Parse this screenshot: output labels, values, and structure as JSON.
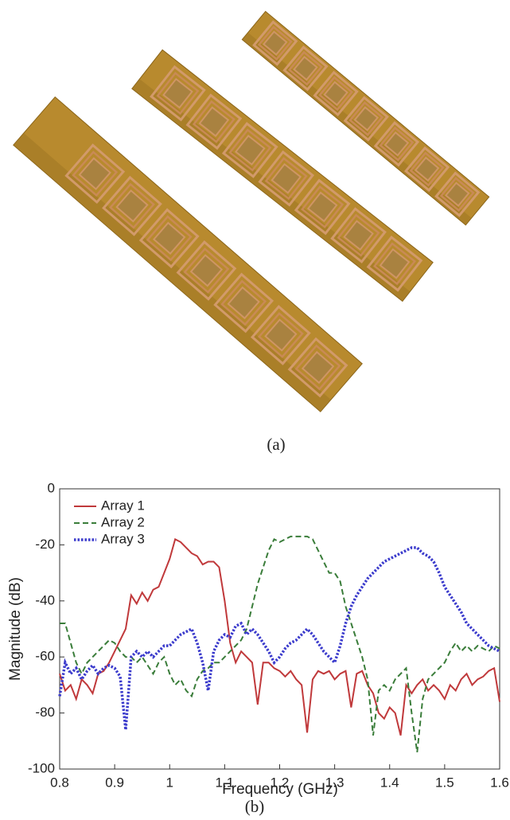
{
  "panel_labels": [
    "(a)",
    "(b)"
  ],
  "chart_data": {
    "type": "line",
    "xlabel": "Frequency (GHz)",
    "ylabel": "Magnitude (dB)",
    "xlim": [
      0.8,
      1.6
    ],
    "ylim": [
      -100,
      0
    ],
    "xticks": [
      0.8,
      0.9,
      1,
      1.1,
      1.2,
      1.3,
      1.4,
      1.5,
      1.6
    ],
    "yticks": [
      0,
      -20,
      -40,
      -60,
      -80,
      -100
    ],
    "grid": false,
    "legend": "upper left",
    "x": [
      0.8,
      0.81,
      0.82,
      0.83,
      0.84,
      0.85,
      0.86,
      0.87,
      0.88,
      0.89,
      0.9,
      0.91,
      0.92,
      0.93,
      0.94,
      0.95,
      0.96,
      0.97,
      0.98,
      0.99,
      1,
      1.01,
      1.02,
      1.03,
      1.04,
      1.05,
      1.06,
      1.07,
      1.08,
      1.09,
      1.1,
      1.11,
      1.12,
      1.13,
      1.14,
      1.15,
      1.16,
      1.17,
      1.18,
      1.19,
      1.2,
      1.21,
      1.22,
      1.23,
      1.24,
      1.25,
      1.26,
      1.27,
      1.28,
      1.29,
      1.3,
      1.31,
      1.32,
      1.33,
      1.34,
      1.35,
      1.36,
      1.37,
      1.38,
      1.39,
      1.4,
      1.41,
      1.42,
      1.43,
      1.44,
      1.45,
      1.46,
      1.47,
      1.48,
      1.49,
      1.5,
      1.51,
      1.52,
      1.53,
      1.54,
      1.55,
      1.56,
      1.57,
      1.58,
      1.59,
      1.6
    ],
    "series": [
      {
        "name": "Array 1",
        "color": "#c0393b",
        "linestyle": "solid",
        "values": [
          -66,
          -72,
          -70,
          -75,
          -68,
          -70,
          -73,
          -66,
          -65,
          -62,
          -58,
          -54,
          -50,
          -38,
          -41,
          -37,
          -40,
          -36,
          -35,
          -30,
          -25,
          -18,
          -19,
          -21,
          -23,
          -24,
          -27,
          -26,
          -26,
          -28,
          -40,
          -55,
          -62,
          -58,
          -60,
          -62,
          -77,
          -62,
          -62,
          -64,
          -65,
          -67,
          -65,
          -68,
          -70,
          -87,
          -68,
          -65,
          -66,
          -65,
          -68,
          -66,
          -65,
          -78,
          -66,
          -65,
          -70,
          -73,
          -80,
          -82,
          -78,
          -80,
          -88,
          -70,
          -73,
          -70,
          -68,
          -72,
          -70,
          -72,
          -75,
          -70,
          -72,
          -68,
          -66,
          -70,
          -68,
          -67,
          -65,
          -64,
          -76
        ]
      },
      {
        "name": "Array 2",
        "color": "#3a7d3a",
        "linestyle": "dashed",
        "values": [
          -48,
          -48,
          -55,
          -62,
          -66,
          -62,
          -60,
          -58,
          -56,
          -54,
          -55,
          -58,
          -60,
          -60,
          -62,
          -60,
          -63,
          -66,
          -62,
          -60,
          -66,
          -70,
          -68,
          -72,
          -74,
          -68,
          -65,
          -64,
          -62,
          -62,
          -60,
          -58,
          -56,
          -54,
          -50,
          -42,
          -34,
          -28,
          -22,
          -18,
          -19,
          -18,
          -17,
          -17,
          -17,
          -17,
          -18,
          -22,
          -26,
          -30,
          -30,
          -33,
          -42,
          -48,
          -54,
          -60,
          -68,
          -88,
          -72,
          -70,
          -72,
          -68,
          -66,
          -64,
          -80,
          -94,
          -75,
          -68,
          -66,
          -64,
          -62,
          -58,
          -55,
          -58,
          -56,
          -58,
          -56,
          -57,
          -58,
          -56,
          -57
        ]
      },
      {
        "name": "Array 3",
        "color": "#3b3bcc",
        "linestyle": "dotted",
        "values": [
          -74,
          -62,
          -66,
          -64,
          -68,
          -65,
          -63,
          -66,
          -64,
          -63,
          -64,
          -67,
          -86,
          -60,
          -58,
          -60,
          -58,
          -60,
          -58,
          -56,
          -56,
          -54,
          -52,
          -51,
          -50,
          -55,
          -62,
          -72,
          -58,
          -54,
          -52,
          -53,
          -49,
          -48,
          -52,
          -50,
          -52,
          -55,
          -58,
          -62,
          -60,
          -57,
          -55,
          -54,
          -52,
          -50,
          -52,
          -55,
          -58,
          -60,
          -62,
          -56,
          -48,
          -42,
          -38,
          -35,
          -32,
          -30,
          -28,
          -26,
          -25,
          -24,
          -23,
          -22,
          -21,
          -21,
          -23,
          -24,
          -26,
          -30,
          -35,
          -38,
          -41,
          -44,
          -48,
          -50,
          -52,
          -54,
          -56,
          -57,
          -58
        ]
      }
    ]
  }
}
